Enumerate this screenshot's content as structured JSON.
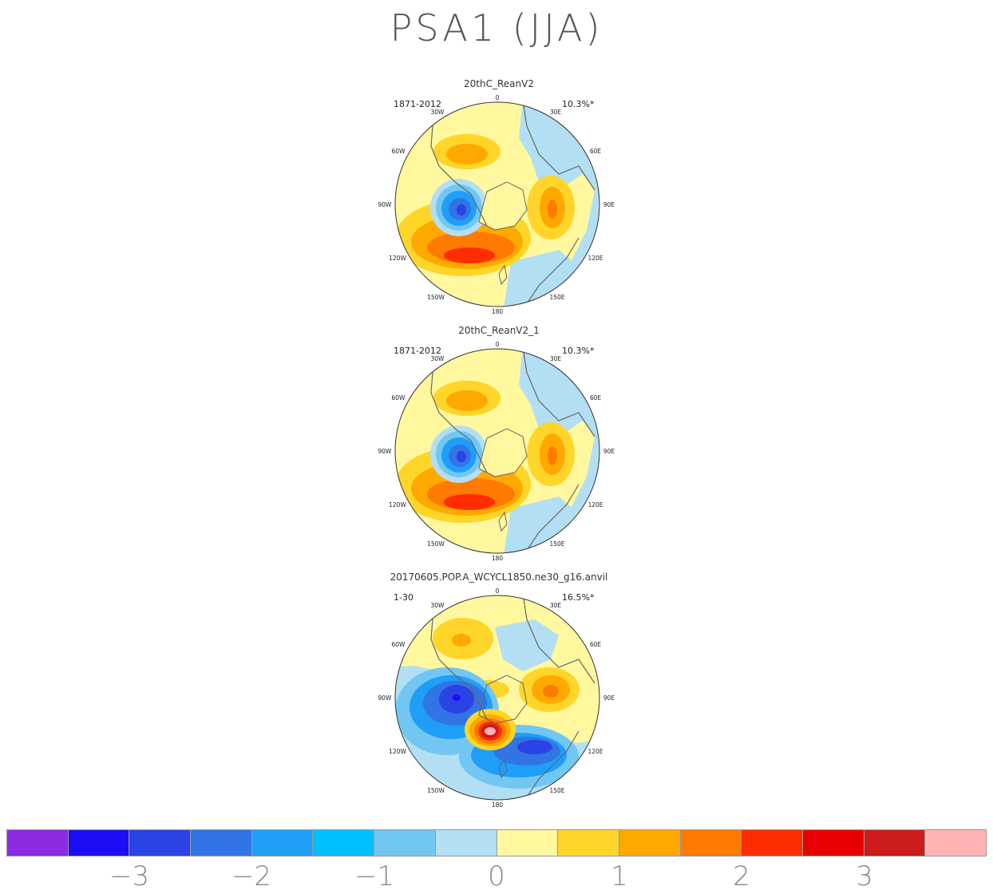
{
  "title": "PSA1 (JJA)",
  "lon_labels": [
    "0",
    "30E",
    "60E",
    "90E",
    "120E",
    "150E",
    "180",
    "150W",
    "120W",
    "90W",
    "60W",
    "30W"
  ],
  "panels": [
    {
      "title": "20thC_ReanV2",
      "period": "1871-2012",
      "pct": "10.3%*"
    },
    {
      "title": "20thC_ReanV2_1",
      "period": "1871-2012",
      "pct": "10.3%*"
    },
    {
      "title": "20170605.POP.A_WCYCL1850.ne30_g16.anvil",
      "period": "1-30",
      "pct": "16.5%*"
    }
  ],
  "colorbar": {
    "colors": [
      "#8a2be2",
      "#1c0df5",
      "#2b42e5",
      "#3174e4",
      "#1f9ef8",
      "#00bfff",
      "#71c7f2",
      "#b2dff3",
      "#fff89e",
      "#ffd52a",
      "#ffa900",
      "#ff7a00",
      "#ff2d00",
      "#e80000",
      "#cc1c1c",
      "#ffb3b3"
    ],
    "labels": [
      "−3",
      "−2",
      "−1",
      "0",
      "1",
      "2",
      "3"
    ]
  }
}
